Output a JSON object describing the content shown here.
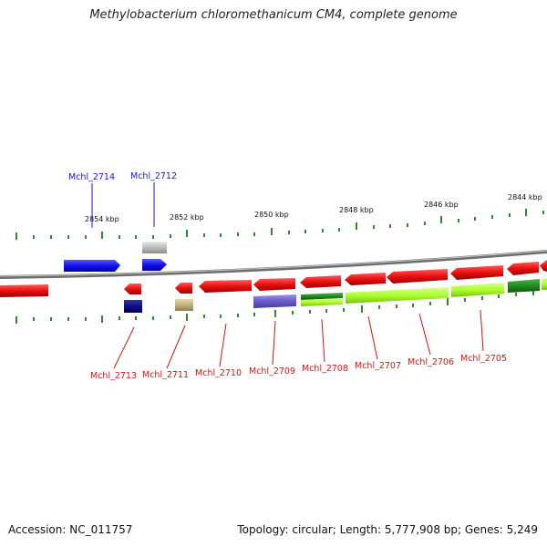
{
  "title": "Methylobacterium chloromethanicum CM4, complete genome",
  "footer": {
    "accession": "Accession: NC_011757",
    "topology": "Topology: circular; Length: 5,777,908 bp; Genes: 5,249"
  },
  "ticks": [
    "2854 kbp",
    "2852 kbp",
    "2850 kbp",
    "2848 kbp",
    "2846 kbp",
    "2844 kbp"
  ],
  "genes_forward": [
    {
      "name": "Mchl_2714",
      "color": "#1515e6"
    },
    {
      "name": "Mchl_2712",
      "color": "#1515e6"
    }
  ],
  "genes_reverse": [
    {
      "name": "Mchl_2713",
      "color": "#e01010"
    },
    {
      "name": "Mchl_2711",
      "color": "#e01010"
    },
    {
      "name": "Mchl_2710",
      "color": "#e01010"
    },
    {
      "name": "Mchl_2709",
      "color": "#e01010"
    },
    {
      "name": "Mchl_2708",
      "color": "#e01010"
    },
    {
      "name": "Mchl_2707",
      "color": "#e01010"
    },
    {
      "name": "Mchl_2706",
      "color": "#e01010"
    },
    {
      "name": "Mchl_2705",
      "color": "#e01010"
    }
  ]
}
